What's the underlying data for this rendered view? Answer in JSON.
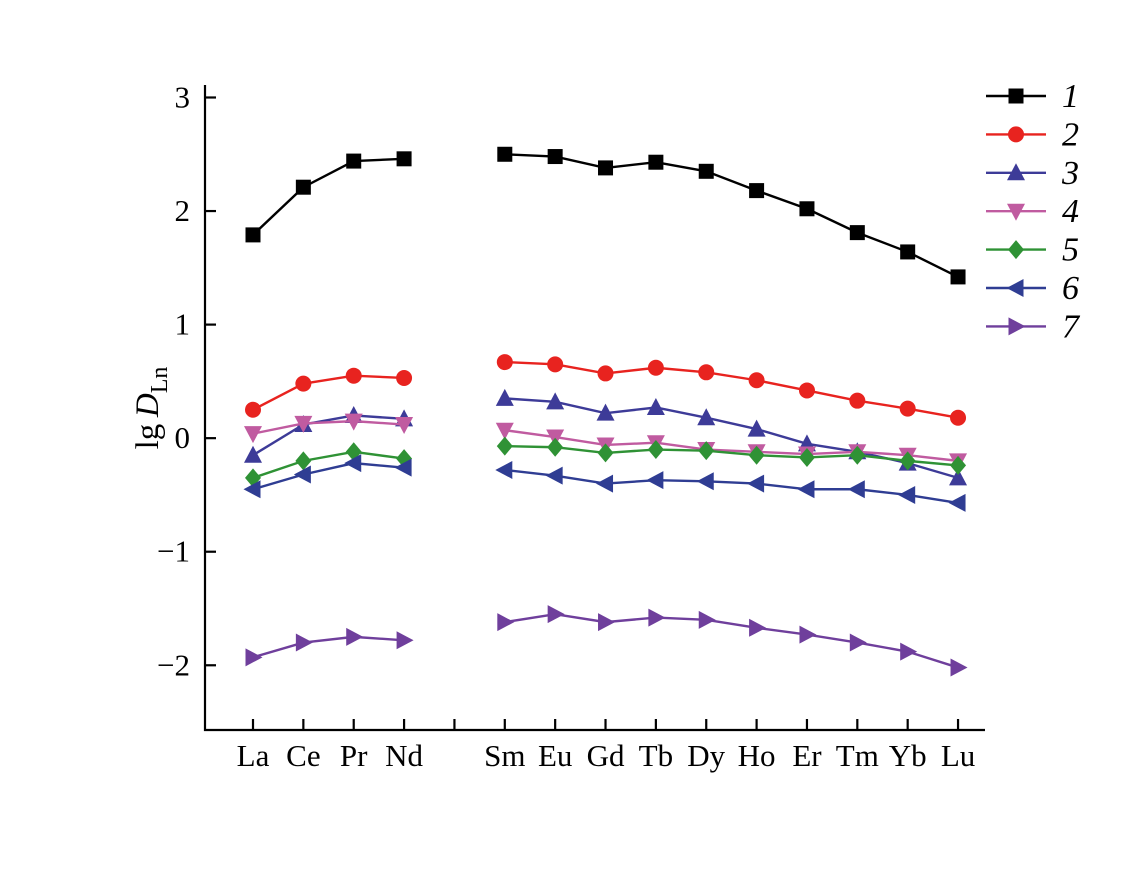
{
  "chart_data": {
    "type": "line",
    "title": "",
    "xlabel": "",
    "ylabel": "lg D Ln",
    "ylabel_parts": {
      "prefix": "lg",
      "symbol": "D",
      "subscript": "Ln"
    },
    "categories": [
      "La",
      "Ce",
      "Pr",
      "Nd",
      "Sm",
      "Eu",
      "Gd",
      "Tb",
      "Dy",
      "Ho",
      "Er",
      "Tm",
      "Yb",
      "Lu"
    ],
    "category_slots": [
      0,
      1,
      2,
      3,
      5,
      6,
      7,
      8,
      9,
      10,
      11,
      12,
      13,
      14
    ],
    "x_gap_after": "Nd",
    "unlabeled_tick_slot": 4,
    "ylim": [
      -2.57,
      3.11
    ],
    "yticks": [
      -2,
      -1,
      0,
      1,
      2,
      3
    ],
    "grid": false,
    "legend_position": "top-right",
    "background": "#ffffff",
    "series": [
      {
        "name": "1",
        "marker": "square",
        "color": "#000000",
        "values": [
          1.79,
          2.21,
          2.44,
          2.46,
          2.5,
          2.48,
          2.38,
          2.43,
          2.35,
          2.18,
          2.02,
          1.81,
          1.64,
          1.42
        ]
      },
      {
        "name": "2",
        "marker": "circle",
        "color": "#e8231f",
        "values": [
          0.25,
          0.48,
          0.55,
          0.53,
          0.67,
          0.65,
          0.57,
          0.62,
          0.58,
          0.51,
          0.42,
          0.33,
          0.26,
          0.18
        ]
      },
      {
        "name": "3",
        "marker": "triangle-up",
        "color": "#3d3b98",
        "values": [
          -0.15,
          0.12,
          0.2,
          0.17,
          0.35,
          0.32,
          0.22,
          0.27,
          0.18,
          0.08,
          -0.05,
          -0.12,
          -0.22,
          -0.35
        ]
      },
      {
        "name": "4",
        "marker": "triangle-down",
        "color": "#c05ba0",
        "values": [
          0.04,
          0.13,
          0.15,
          0.12,
          0.07,
          0.01,
          -0.06,
          -0.04,
          -0.1,
          -0.12,
          -0.14,
          -0.12,
          -0.15,
          -0.2
        ]
      },
      {
        "name": "5",
        "marker": "diamond",
        "color": "#2f9235",
        "values": [
          -0.35,
          -0.2,
          -0.12,
          -0.18,
          -0.07,
          -0.08,
          -0.13,
          -0.1,
          -0.11,
          -0.15,
          -0.17,
          -0.15,
          -0.2,
          -0.24
        ]
      },
      {
        "name": "6",
        "marker": "triangle-left",
        "color": "#2f3d93",
        "values": [
          -0.45,
          -0.32,
          -0.22,
          -0.26,
          -0.28,
          -0.33,
          -0.4,
          -0.37,
          -0.38,
          -0.4,
          -0.45,
          -0.45,
          -0.5,
          -0.57
        ]
      },
      {
        "name": "7",
        "marker": "triangle-right",
        "color": "#6f3f9c",
        "values": [
          -1.93,
          -1.8,
          -1.75,
          -1.78,
          -1.62,
          -1.55,
          -1.62,
          -1.58,
          -1.6,
          -1.67,
          -1.73,
          -1.8,
          -1.88,
          -2.02
        ]
      }
    ]
  }
}
